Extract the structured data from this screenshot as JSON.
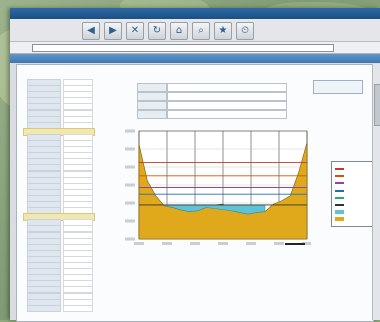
{
  "window": {
    "title": "",
    "address": ""
  },
  "toolbar": {
    "icons": [
      "back-icon",
      "forward-icon",
      "stop-icon",
      "refresh-icon",
      "home-icon",
      "search-icon",
      "favorites-icon",
      "history-icon"
    ]
  },
  "page": {
    "title": "",
    "footnote": ""
  },
  "info_table": [
    {
      "k": "",
      "v": ""
    },
    {
      "k": "",
      "v": ""
    },
    {
      "k": "",
      "v": ""
    },
    {
      "k": "",
      "v": ""
    }
  ],
  "note_box": "",
  "left_panel": {
    "rows": 38
  },
  "chart_data": {
    "type": "area",
    "title": "",
    "xlabel": "",
    "ylabel": "",
    "x": [
      0,
      1,
      2,
      3,
      4,
      5,
      6,
      7,
      8,
      9,
      10,
      11,
      12,
      13,
      14,
      15,
      16,
      17,
      18,
      19,
      20
    ],
    "series": [
      {
        "name": "",
        "values": [
          13.4,
          9,
          7.2,
          6.0,
          5.8,
          5.5,
          5.3,
          5.4,
          5.8,
          6.1,
          6.2,
          5.4,
          5.2,
          5.0,
          5.2,
          5.3,
          6.2,
          6.6,
          7.2,
          10,
          13.6
        ]
      }
    ],
    "water_surface": [
      6.1,
      6.1
    ],
    "ylim": [
      2,
      15
    ],
    "grid": true,
    "legend_position": "right"
  },
  "legend": [
    {
      "color": "#c0392b",
      "label": ""
    },
    {
      "color": "#d35400",
      "label": ""
    },
    {
      "color": "#8e44ad",
      "label": ""
    },
    {
      "color": "#1f6fb2",
      "label": ""
    },
    {
      "color": "#27ae60",
      "label": ""
    },
    {
      "color": "#333333",
      "label": ""
    },
    {
      "color": "#5fc3d8",
      "label": ""
    },
    {
      "color": "#e0a91c",
      "label": ""
    }
  ]
}
